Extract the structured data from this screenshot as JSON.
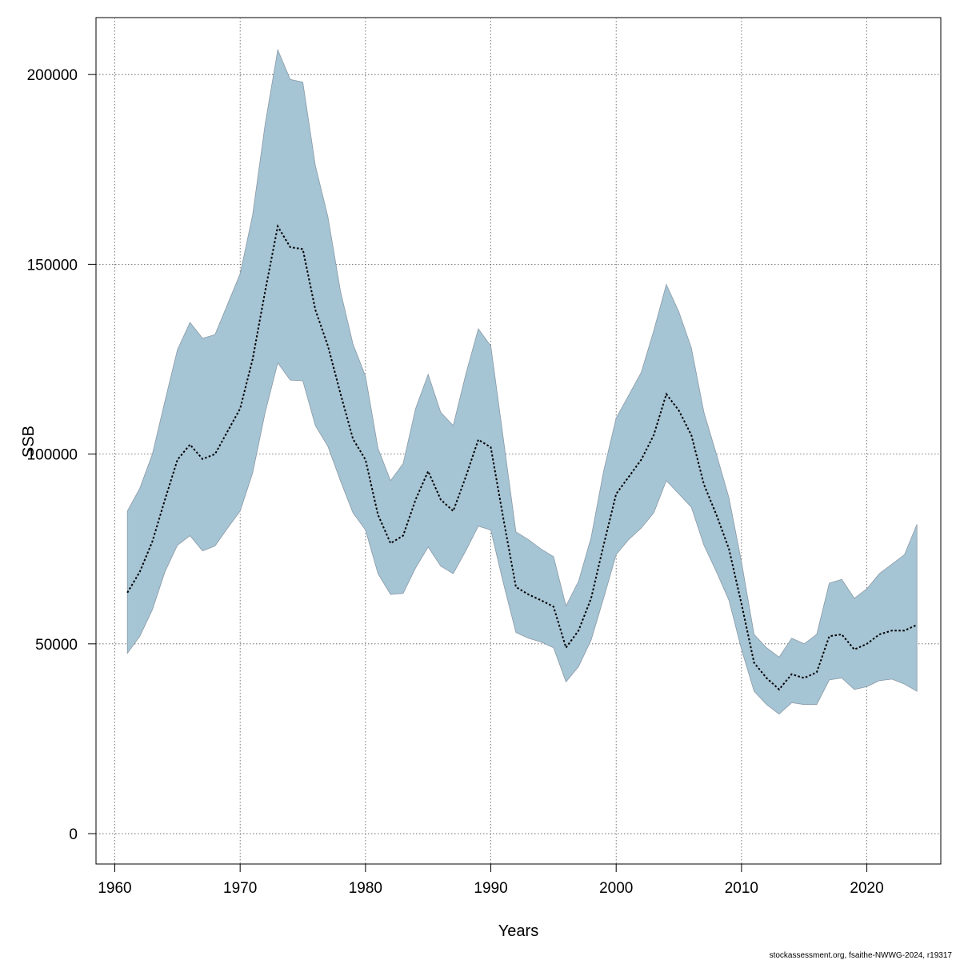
{
  "chart_data": {
    "type": "area",
    "xlabel": "Years",
    "ylabel": "SSB",
    "footer": "stockassessment.org, fsaithe-NWWG-2024, r19317",
    "xlim": [
      1958.5,
      2025.9
    ],
    "ylim": [
      -8000,
      215000
    ],
    "x_ticks": [
      1960,
      1970,
      1980,
      1990,
      2000,
      2010,
      2020
    ],
    "y_ticks": [
      0,
      50000,
      100000,
      150000,
      200000
    ],
    "grid": true,
    "colors": {
      "band": "#a5c4d4",
      "band_edge": "#8a9aa6",
      "line": "#000000",
      "grid": "#555555"
    },
    "x": [
      1961,
      1962,
      1963,
      1964,
      1965,
      1966,
      1967,
      1968,
      1969,
      1970,
      1971,
      1972,
      1973,
      1974,
      1975,
      1976,
      1977,
      1978,
      1979,
      1980,
      1981,
      1982,
      1983,
      1984,
      1985,
      1986,
      1987,
      1988,
      1989,
      1990,
      1991,
      1992,
      1993,
      1994,
      1995,
      1996,
      1997,
      1998,
      1999,
      2000,
      2001,
      2002,
      2003,
      2004,
      2005,
      2006,
      2007,
      2008,
      2009,
      2010,
      2011,
      2012,
      2013,
      2014,
      2015,
      2016,
      2017,
      2018,
      2019,
      2020,
      2021,
      2022,
      2023,
      2024
    ],
    "series": [
      {
        "estimate": [
          63500,
          69000,
          77000,
          88000,
          98500,
          102500,
          98700,
          100000,
          106000,
          112000,
          125000,
          143000,
          160000,
          154500,
          154000,
          138000,
          128500,
          116000,
          104000,
          98500,
          84000,
          76500,
          78500,
          88000,
          95500,
          88000,
          85000,
          94000,
          103800,
          101800,
          83000,
          65000,
          63000,
          61500,
          59800,
          49000,
          53500,
          62000,
          76000,
          89500,
          94000,
          98500,
          105000,
          115800,
          111500,
          105000,
          92000,
          84000,
          75000,
          60500,
          45000,
          41000,
          38000,
          42000,
          41000,
          42500,
          52000,
          52500,
          48500,
          50000,
          52500,
          53500,
          53500,
          55000
        ],
        "lower": [
          47500,
          52000,
          59000,
          69000,
          76000,
          78500,
          74500,
          75800,
          80500,
          85000,
          95000,
          111000,
          124000,
          119500,
          119300,
          107500,
          102000,
          93000,
          84500,
          80000,
          68500,
          63000,
          63300,
          70000,
          75500,
          70500,
          68500,
          74500,
          81000,
          80000,
          66000,
          53000,
          51500,
          50500,
          49000,
          40000,
          44000,
          51000,
          62000,
          73500,
          77500,
          80500,
          84500,
          93000,
          89500,
          86000,
          76000,
          69000,
          61500,
          48500,
          37500,
          34000,
          31500,
          34500,
          34000,
          34000,
          40500,
          41000,
          38000,
          38700,
          40300,
          40700,
          39400,
          37500
        ],
        "upper": [
          85000,
          91000,
          100000,
          114000,
          127500,
          134700,
          130500,
          131500,
          139500,
          147500,
          163000,
          187000,
          206500,
          198700,
          198000,
          176000,
          162500,
          143000,
          129000,
          120500,
          101500,
          93000,
          97500,
          112000,
          121000,
          111000,
          107500,
          121000,
          133000,
          128500,
          104000,
          79500,
          77500,
          75000,
          73000,
          60000,
          66500,
          78000,
          95500,
          109500,
          115500,
          121500,
          132500,
          144700,
          137500,
          128000,
          111000,
          100000,
          88500,
          71500,
          52500,
          49000,
          46500,
          51500,
          50000,
          52500,
          66000,
          67000,
          62000,
          64500,
          68500,
          71000,
          73500,
          81500
        ]
      }
    ]
  }
}
